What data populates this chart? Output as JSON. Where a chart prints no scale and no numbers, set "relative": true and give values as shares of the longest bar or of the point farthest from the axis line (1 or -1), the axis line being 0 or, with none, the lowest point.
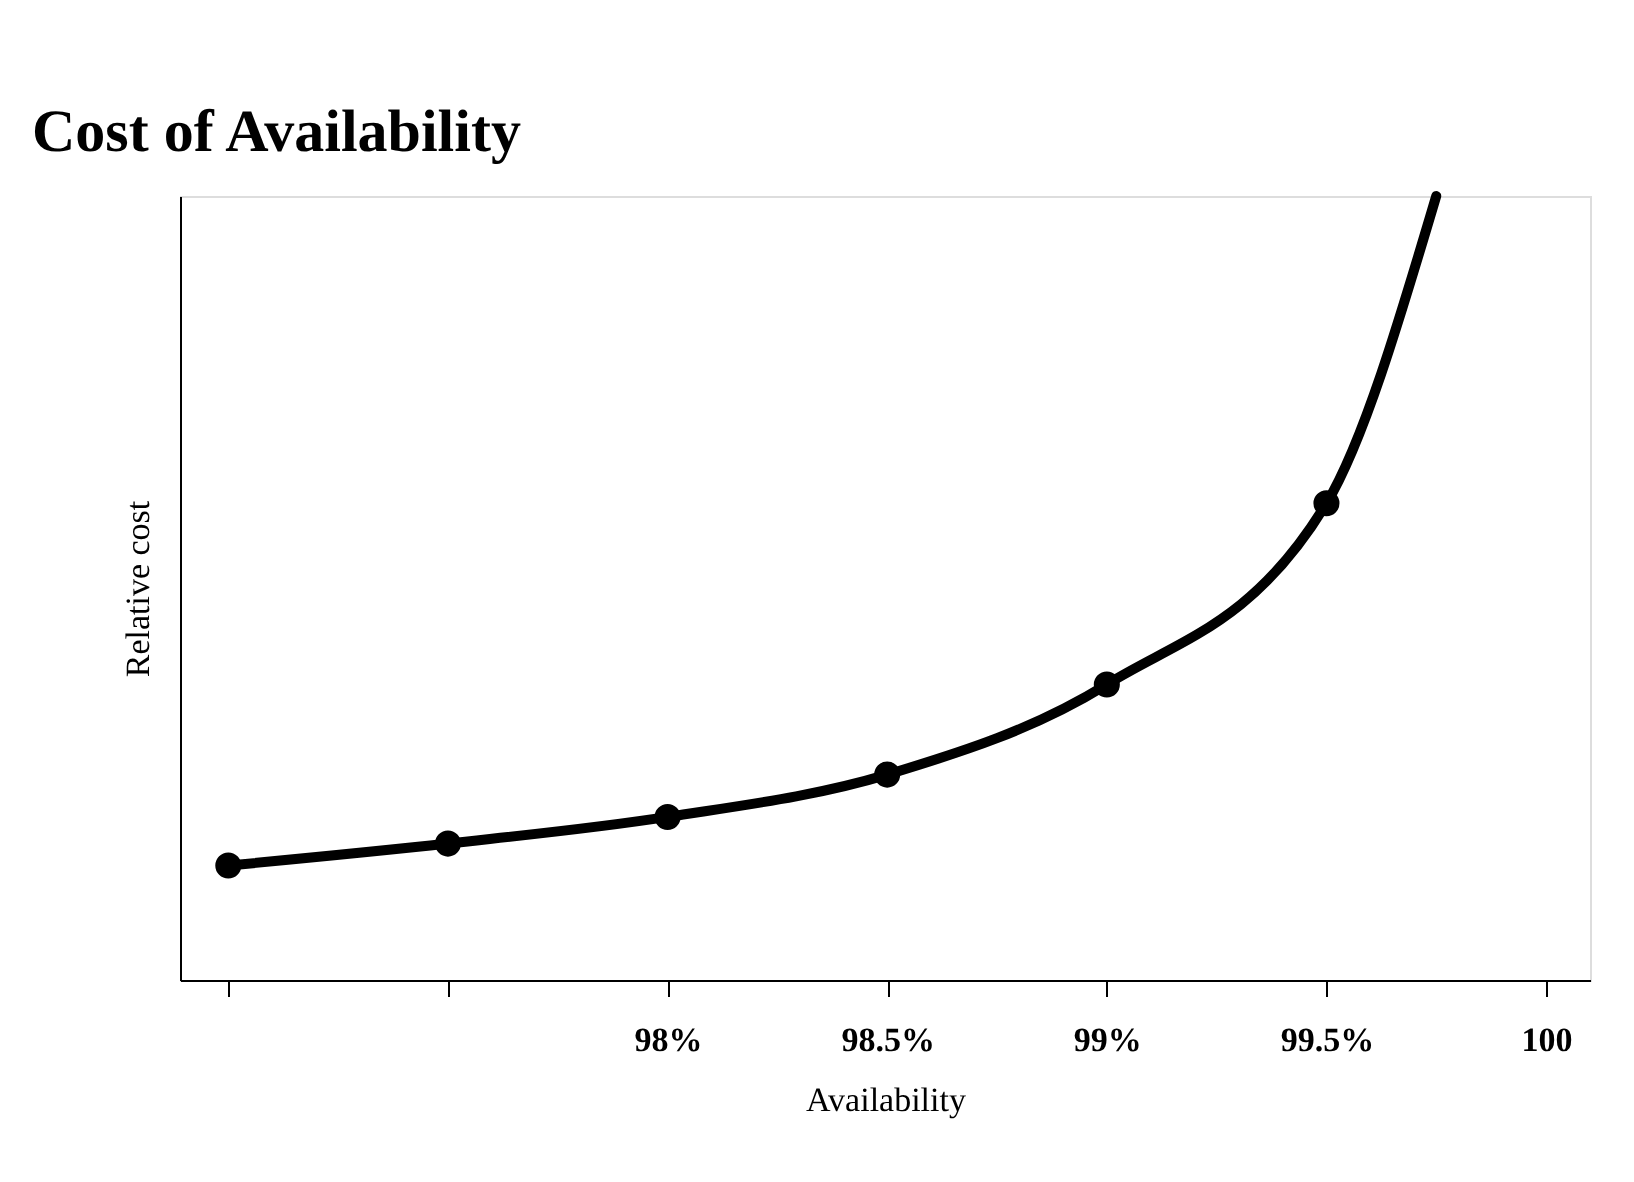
{
  "chart_data": {
    "type": "line",
    "title": "Cost of Availability",
    "xlabel": "Availability",
    "ylabel": "Relative cost",
    "relative": true,
    "xlim": [
      96.89,
      100.1
    ],
    "xticks": [
      {
        "value": 97,
        "label": null
      },
      {
        "value": 97.5,
        "label": null
      },
      {
        "value": 98,
        "label": "98%"
      },
      {
        "value": 98.5,
        "label": "98.5%"
      },
      {
        "value": 99,
        "label": "99%"
      },
      {
        "value": 99.5,
        "label": "99.5%"
      },
      {
        "value": 100,
        "label": "100"
      }
    ],
    "series": [
      {
        "type": "line",
        "color": "#000000",
        "marker": "none",
        "x": [
          97,
          97.5,
          98,
          98.5,
          99,
          99.5,
          99.75
        ],
        "values": [
          0.146,
          0.174,
          0.208,
          0.262,
          0.377,
          0.608,
          1.0
        ]
      },
      {
        "type": "scatter",
        "color": "#000000",
        "marker": "circle",
        "x": [
          97,
          97.5,
          98,
          98.5,
          99,
          99.5
        ],
        "values": [
          0.146,
          0.174,
          0.208,
          0.262,
          0.377,
          0.608
        ]
      }
    ],
    "grid": false
  }
}
